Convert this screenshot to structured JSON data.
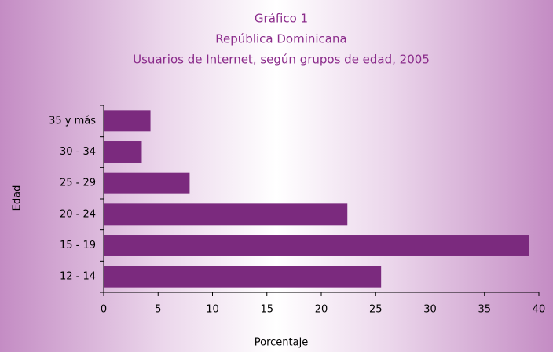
{
  "chart_data": {
    "type": "bar",
    "orientation": "horizontal",
    "title": [
      "Gráfico 1",
      "República Dominicana",
      "Usuarios de Internet, según grupos de edad, 2005"
    ],
    "x_label": "Porcentaje",
    "y_label": "Edad",
    "categories": [
      "12 - 14",
      "15 - 19",
      "20 - 24",
      "25 - 29",
      "30 - 34",
      "35 y más"
    ],
    "values": [
      25.5,
      39.1,
      22.4,
      7.9,
      3.5,
      4.3
    ],
    "color": "#7b2a7e",
    "xlim": [
      0,
      40
    ],
    "xticks": [
      0,
      5,
      10,
      15,
      20,
      25,
      30,
      35,
      40
    ],
    "grid": false
  }
}
